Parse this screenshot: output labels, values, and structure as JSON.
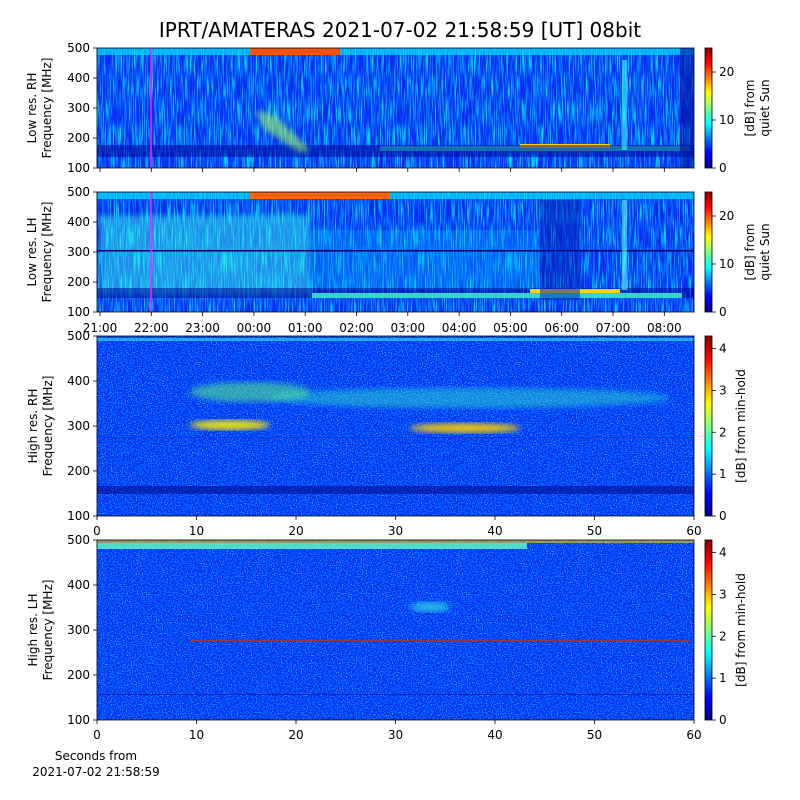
{
  "title": "IPRT/AMATERAS 2021-07-02 21:58:59 [UT]   08bit",
  "chart_data": [
    {
      "type": "heatmap",
      "ylabel": [
        "Low res. RH",
        "Frequency [MHz]"
      ],
      "ylim": [
        100,
        500
      ],
      "yticks": [
        100,
        200,
        300,
        400,
        500
      ],
      "colorbar_label": [
        "[dB] from",
        "quiet Sun"
      ],
      "clim": [
        0,
        25
      ],
      "cticks": [
        0,
        10,
        20
      ]
    },
    {
      "type": "heatmap",
      "ylabel": [
        "Low res. LH",
        "Frequency [MHz]"
      ],
      "ylim": [
        100,
        500
      ],
      "yticks": [
        100,
        200,
        300,
        400,
        500
      ],
      "xticks": [
        "21:00",
        "22:00",
        "23:00",
        "00:00",
        "01:00",
        "02:00",
        "03:00",
        "04:00",
        "05:00",
        "06:00",
        "07:00",
        "08:00"
      ],
      "colorbar_label": [
        "[dB] from",
        "quiet Sun"
      ],
      "clim": [
        0,
        25
      ],
      "cticks": [
        0,
        10,
        20
      ]
    },
    {
      "type": "heatmap",
      "ylabel": [
        "High res. RH",
        "Frequency [MHz]"
      ],
      "ylim": [
        100,
        500
      ],
      "yticks": [
        100,
        200,
        300,
        400,
        500
      ],
      "xlim": [
        0,
        60
      ],
      "xticks": [
        0,
        10,
        20,
        30,
        40,
        50,
        60
      ],
      "colorbar_label": [
        "[dB] from min-hold"
      ],
      "clim": [
        0,
        4.3
      ],
      "cticks": [
        0,
        1,
        2,
        3,
        4
      ]
    },
    {
      "type": "heatmap",
      "ylabel": [
        "High res. LH",
        "Frequency [MHz]"
      ],
      "ylim": [
        100,
        500
      ],
      "yticks": [
        100,
        200,
        300,
        400,
        500
      ],
      "xlim": [
        0,
        60
      ],
      "xticks": [
        0,
        10,
        20,
        30,
        40,
        50,
        60
      ],
      "xlabel": [
        "Seconds from",
        "2021-07-02 21:58:59"
      ],
      "colorbar_label": [
        "[dB] from min-hold"
      ],
      "clim": [
        0,
        4.3
      ],
      "cticks": [
        0,
        1,
        2,
        3,
        4
      ]
    }
  ]
}
